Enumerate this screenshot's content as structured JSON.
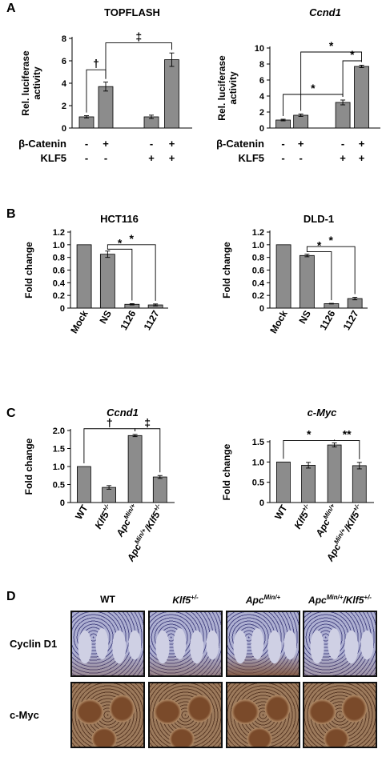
{
  "figure": {
    "panel_labels": {
      "A": "A",
      "B": "B",
      "C": "C",
      "D": "D"
    },
    "panelA": {
      "legend_rows": {
        "beta_catenin": {
          "label": "β-Catenin",
          "marks": [
            "-",
            "+",
            "-",
            "+"
          ]
        },
        "klf5": {
          "label": "KLF5",
          "marks": [
            "-",
            "-",
            "+",
            "+"
          ]
        }
      }
    },
    "panelD": {
      "columns": [
        {
          "base": "WT",
          "sup": ""
        },
        {
          "base": "Klf5",
          "sup": "+/-"
        },
        {
          "base": "Apc",
          "sup": "Min/+"
        },
        {
          "base": "Apc",
          "sup": "Min/+",
          "base2": "/Klf5",
          "sup2": "+/-"
        }
      ],
      "rows": [
        "Cyclin D1",
        "c-Myc"
      ],
      "stain_colors": {
        "background": "#cfd0e4",
        "nuclei": "#4b4a86",
        "brown": "#7a4a2a",
        "light_brown": "#b08a66"
      }
    }
  },
  "chart_data": [
    {
      "id": "A-left",
      "type": "bar",
      "title": "TOPFLASH",
      "title_italic": false,
      "ylabel": [
        "Rel. luciferase",
        "activity"
      ],
      "ylim": [
        0,
        8
      ],
      "yticks": [
        0,
        2,
        4,
        6,
        8
      ],
      "ytick_labels": [
        "0",
        "2",
        "4",
        "6",
        "8"
      ],
      "categories": [
        "1",
        "2",
        "3",
        "4"
      ],
      "values": [
        1.0,
        3.7,
        1.0,
        6.1
      ],
      "errors": [
        0.1,
        0.4,
        0.15,
        0.6
      ],
      "groups": [
        [
          0,
          1
        ],
        [
          2,
          3
        ]
      ],
      "annotations": [
        {
          "from": 0,
          "to": 1,
          "symbol": "†",
          "level": 5.2
        },
        {
          "from": 1,
          "to": 3,
          "symbol": "‡",
          "level": 7.6
        }
      ]
    },
    {
      "id": "A-right",
      "type": "bar",
      "title": "Ccnd1",
      "title_italic": true,
      "ylabel": [
        "Rel. luciferase",
        "activity"
      ],
      "ylim": [
        0,
        10
      ],
      "yticks": [
        0,
        2,
        4,
        6,
        8,
        10
      ],
      "ytick_labels": [
        "0",
        "2",
        "4",
        "6",
        "8",
        "10"
      ],
      "categories": [
        "1",
        "2",
        "3",
        "4"
      ],
      "values": [
        1.0,
        1.6,
        3.2,
        7.7
      ],
      "errors": [
        0.1,
        0.15,
        0.3,
        0.15
      ],
      "groups": [
        [
          0,
          1
        ],
        [
          2,
          3
        ]
      ],
      "annotations": [
        {
          "from": 0,
          "to": 2,
          "symbol": "*",
          "level": 4.2
        },
        {
          "from": 2,
          "to": 3,
          "symbol": "*",
          "level": 8.4
        },
        {
          "from": 1,
          "to": 3,
          "symbol": "*",
          "level": 9.5
        }
      ]
    },
    {
      "id": "B-left",
      "type": "bar",
      "title": "HCT116",
      "title_italic": false,
      "ylabel": [
        "Fold change"
      ],
      "ylim": [
        0,
        1.2
      ],
      "yticks": [
        0,
        0.2,
        0.4,
        0.6,
        0.8,
        1.0,
        1.2
      ],
      "ytick_labels": [
        "0",
        "0.2",
        "0.4",
        "0.6",
        "0.8",
        "1.0",
        "1.2"
      ],
      "categories": [
        "Mock",
        "NS",
        "1126",
        "1127"
      ],
      "values": [
        1.0,
        0.85,
        0.06,
        0.05
      ],
      "errors": [
        0,
        0.05,
        0.01,
        0.015
      ],
      "groups": [
        [
          0
        ],
        [
          1
        ],
        [
          2
        ],
        [
          3
        ]
      ],
      "annotations": [
        {
          "from": 1,
          "to": 2,
          "symbol": "*",
          "level": 0.93
        },
        {
          "from": 1,
          "to": 3,
          "symbol": "*",
          "level": 1.0
        }
      ]
    },
    {
      "id": "B-right",
      "type": "bar",
      "title": "DLD-1",
      "title_italic": false,
      "ylabel": [
        "Fold change"
      ],
      "ylim": [
        0,
        1.2
      ],
      "yticks": [
        0,
        0.2,
        0.4,
        0.6,
        0.8,
        1.0,
        1.2
      ],
      "ytick_labels": [
        "0",
        "0.2",
        "0.4",
        "0.6",
        "0.8",
        "1.0",
        "1.2"
      ],
      "categories": [
        "Mock",
        "NS",
        "1126",
        "1127"
      ],
      "values": [
        1.0,
        0.83,
        0.07,
        0.15
      ],
      "errors": [
        0,
        0.02,
        0.005,
        0.02
      ],
      "groups": [
        [
          0
        ],
        [
          1
        ],
        [
          2
        ],
        [
          3
        ]
      ],
      "annotations": [
        {
          "from": 1,
          "to": 2,
          "symbol": "*",
          "level": 0.89
        },
        {
          "from": 1,
          "to": 3,
          "symbol": "*",
          "level": 0.97
        }
      ]
    },
    {
      "id": "C-left",
      "type": "bar",
      "title": "Ccnd1",
      "title_italic": true,
      "ylabel": [
        "Fold change"
      ],
      "ylim": [
        0,
        2.0
      ],
      "yticks": [
        0,
        0.5,
        1.0,
        1.5,
        2.0
      ],
      "ytick_labels": [
        "0",
        "0.5",
        "1.0",
        "1.5",
        "2.0"
      ],
      "categories": [
        "WT",
        "Klf5+/-",
        "ApcMin/+",
        "ApcMin/+/Klf5+/-"
      ],
      "category_labels": [
        {
          "base": "WT",
          "sup": ""
        },
        {
          "base": "Klf5",
          "sup": "+/-"
        },
        {
          "base": "Apc",
          "sup": "Min/+"
        },
        {
          "base": "Apc",
          "sup": "Min/+",
          "base2": "/Klf5",
          "sup2": "+/-"
        }
      ],
      "values": [
        1.0,
        0.42,
        1.86,
        0.71
      ],
      "errors": [
        0,
        0.05,
        0.03,
        0.04
      ],
      "groups": [
        [
          0
        ],
        [
          1
        ],
        [
          2
        ],
        [
          3
        ]
      ],
      "annotations": [
        {
          "from": 0,
          "to": 2,
          "symbol": "†",
          "level": 2.05
        },
        {
          "from": 2,
          "to": 3,
          "symbol": "‡",
          "level": 2.05
        }
      ]
    },
    {
      "id": "C-right",
      "type": "bar",
      "title": "c-Myc",
      "title_italic": true,
      "ylabel": [
        "Fold change"
      ],
      "ylim": [
        0,
        1.5
      ],
      "yticks": [
        0,
        0.5,
        1.0,
        1.5
      ],
      "ytick_labels": [
        "0",
        "0.5",
        "1.0",
        "1.5"
      ],
      "categories": [
        "WT",
        "Klf5+/-",
        "ApcMin/+",
        "ApcMin/+/Klf5+/-"
      ],
      "category_labels": [
        {
          "base": "WT",
          "sup": ""
        },
        {
          "base": "Klf5",
          "sup": "+/-"
        },
        {
          "base": "Apc",
          "sup": "Min/+"
        },
        {
          "base": "Apc",
          "sup": "Min/+",
          "base2": "/Klf5",
          "sup2": "+/-"
        }
      ],
      "values": [
        1.0,
        0.92,
        1.42,
        0.91
      ],
      "errors": [
        0,
        0.07,
        0.05,
        0.08
      ],
      "groups": [
        [
          0
        ],
        [
          1
        ],
        [
          2
        ],
        [
          3
        ]
      ],
      "annotations": [
        {
          "from": 0,
          "to": 2,
          "symbol": "*",
          "level": 1.53
        },
        {
          "from": 2,
          "to": 3,
          "symbol": "**",
          "level": 1.53
        }
      ]
    }
  ]
}
